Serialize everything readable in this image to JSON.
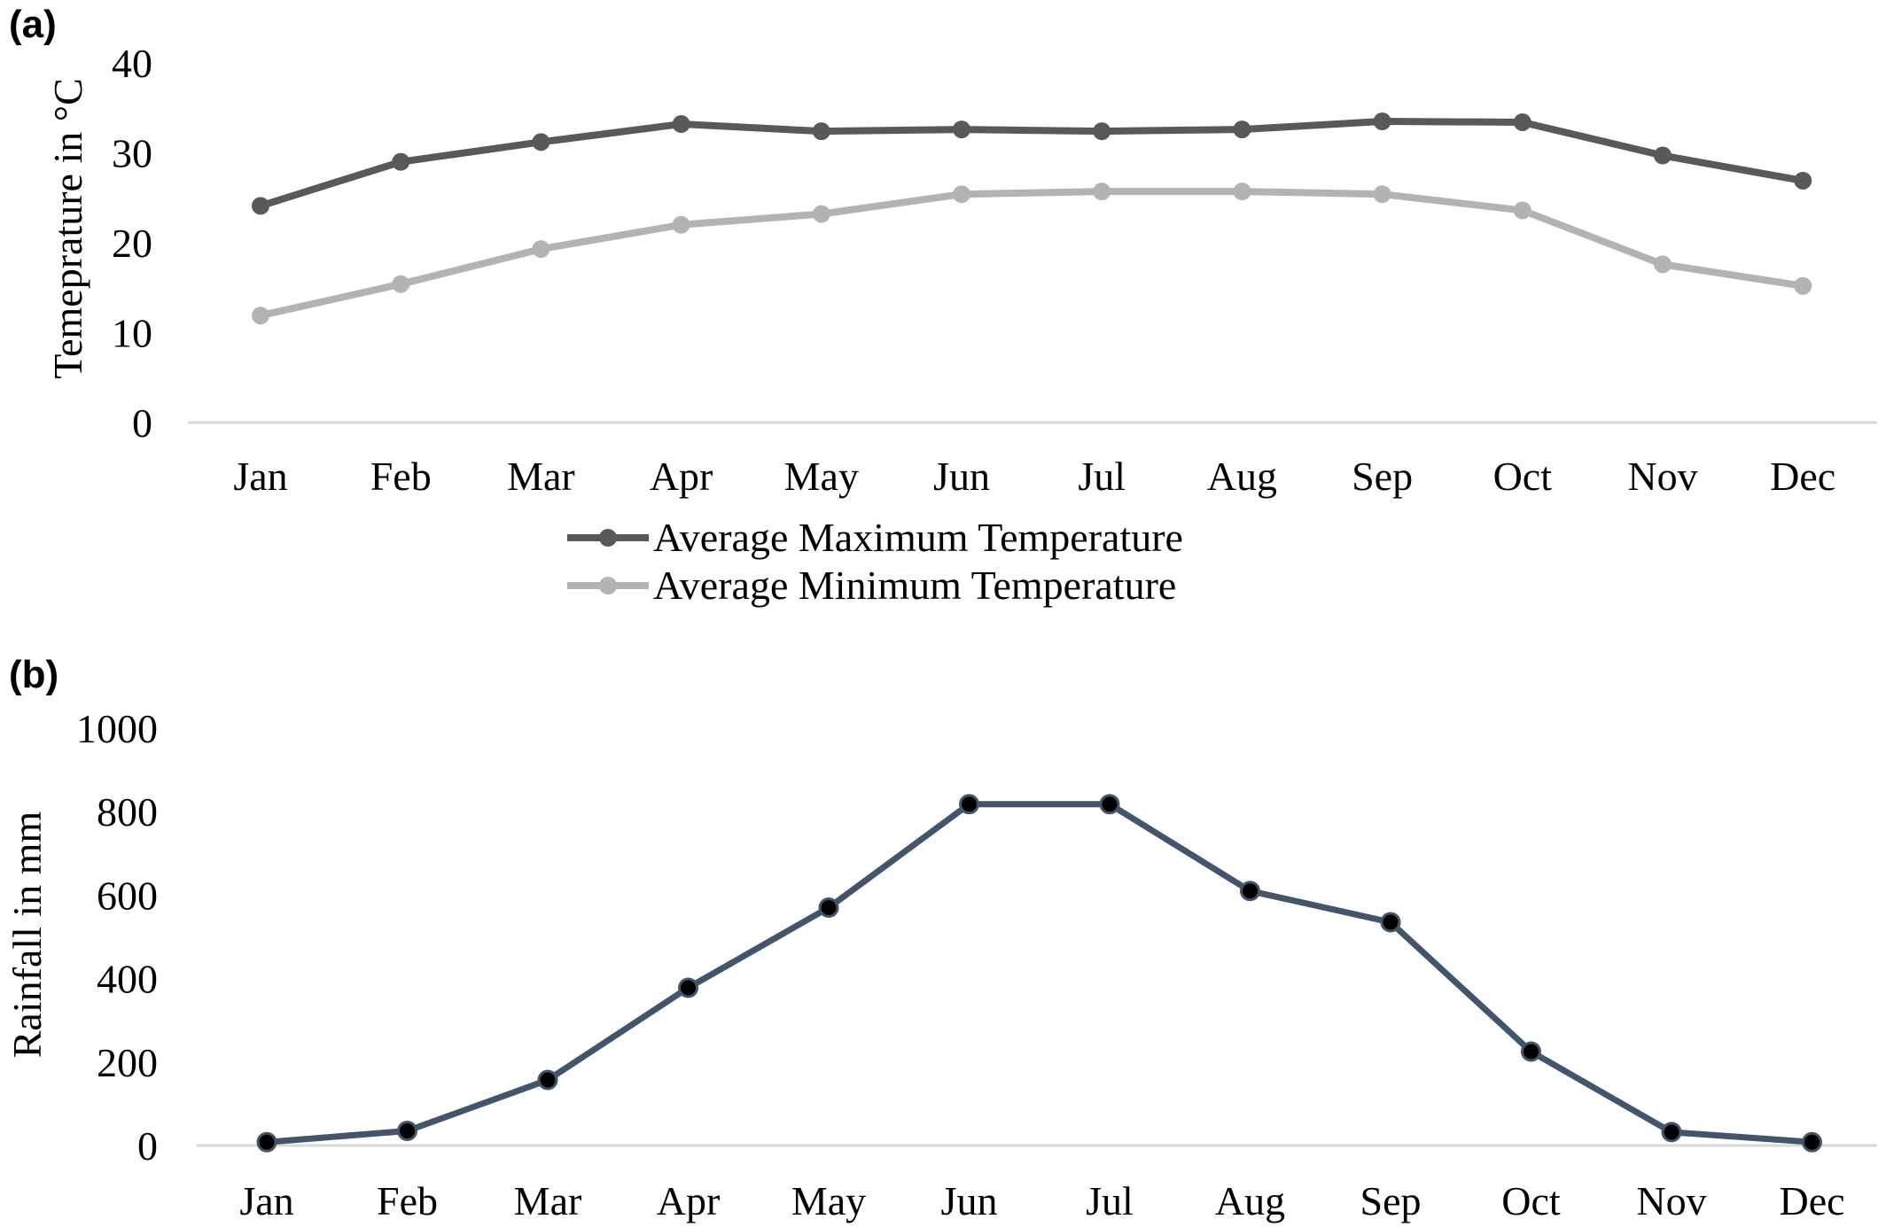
{
  "chart_data": [
    {
      "type": "line",
      "panel_label": "(a)",
      "categories": [
        "Jan",
        "Feb",
        "Mar",
        "Apr",
        "May",
        "Jun",
        "Jul",
        "Aug",
        "Sep",
        "Oct",
        "Nov",
        "Dec"
      ],
      "series": [
        {
          "name": "Average Maximum Temperature",
          "color": "#595959",
          "values": [
            24.1,
            29.0,
            31.2,
            33.2,
            32.4,
            32.6,
            32.4,
            32.6,
            33.5,
            33.4,
            29.7,
            26.9
          ]
        },
        {
          "name": "Average Minimum Temperature",
          "color": "#b3b3b3",
          "values": [
            11.9,
            15.4,
            19.3,
            22.0,
            23.2,
            25.4,
            25.7,
            25.7,
            25.4,
            23.6,
            17.6,
            15.2
          ]
        }
      ],
      "ylabel": "Temeprature in °C",
      "xlabel": "",
      "ylim": [
        0,
        40
      ],
      "yticks": [
        "0",
        "10",
        "20",
        "30",
        "40"
      ],
      "grid": false,
      "legend_position": "bottom"
    },
    {
      "type": "line",
      "panel_label": "(b)",
      "categories": [
        "Jan",
        "Feb",
        "Mar",
        "Apr",
        "May",
        "Jun",
        "Jul",
        "Aug",
        "Sep",
        "Oct",
        "Nov",
        "Dec"
      ],
      "series": [
        {
          "color": "#44546a",
          "values": [
            8,
            35,
            157,
            378,
            570,
            818,
            818,
            610,
            535,
            225,
            32,
            8
          ]
        }
      ],
      "ylabel": "Rainfall in mm",
      "xlabel": "",
      "ylim": [
        0,
        1000
      ],
      "yticks": [
        "0",
        "200",
        "400",
        "600",
        "800",
        "1000"
      ],
      "grid": false
    }
  ]
}
